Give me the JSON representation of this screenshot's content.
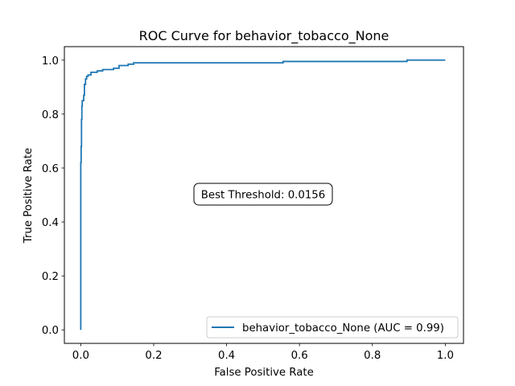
{
  "chart_data": {
    "type": "line",
    "title": "ROC Curve for behavior_tobacco_None",
    "xlabel": "False Positive Rate",
    "ylabel": "True Positive Rate",
    "xlim": [
      -0.045,
      1.05
    ],
    "ylim": [
      -0.05,
      1.05
    ],
    "xticks": [
      0.0,
      0.2,
      0.4,
      0.6,
      0.8,
      1.0
    ],
    "yticks": [
      0.0,
      0.2,
      0.4,
      0.6,
      0.8,
      1.0
    ],
    "xtick_labels": [
      "0.0",
      "0.2",
      "0.4",
      "0.6",
      "0.8",
      "1.0"
    ],
    "ytick_labels": [
      "0.0",
      "0.2",
      "0.4",
      "0.6",
      "0.8",
      "1.0"
    ],
    "grid": false,
    "legend_position": "lower-right",
    "annotation": "Best Threshold: 0.0156",
    "series": [
      {
        "name": "behavior_tobacco_None (AUC = 0.99)",
        "color": "#1f77b4",
        "x": [
          0.0,
          0.0,
          0.0,
          0.0,
          0.001,
          0.001,
          0.002,
          0.002,
          0.003,
          0.003,
          0.004,
          0.004,
          0.008,
          0.008,
          0.01,
          0.01,
          0.013,
          0.013,
          0.016,
          0.016,
          0.02,
          0.02,
          0.028,
          0.028,
          0.045,
          0.045,
          0.06,
          0.06,
          0.09,
          0.09,
          0.105,
          0.105,
          0.13,
          0.13,
          0.145,
          0.145,
          0.555,
          0.555,
          0.595,
          0.595,
          0.895,
          0.895,
          1.0
        ],
        "y": [
          0.0,
          0.09,
          0.09,
          0.62,
          0.62,
          0.68,
          0.68,
          0.78,
          0.78,
          0.83,
          0.83,
          0.85,
          0.85,
          0.87,
          0.87,
          0.91,
          0.91,
          0.93,
          0.93,
          0.94,
          0.94,
          0.945,
          0.945,
          0.955,
          0.955,
          0.96,
          0.96,
          0.965,
          0.965,
          0.97,
          0.97,
          0.98,
          0.98,
          0.985,
          0.985,
          0.99,
          0.99,
          0.995,
          0.995,
          0.995,
          0.995,
          1.0,
          1.0
        ]
      }
    ]
  }
}
